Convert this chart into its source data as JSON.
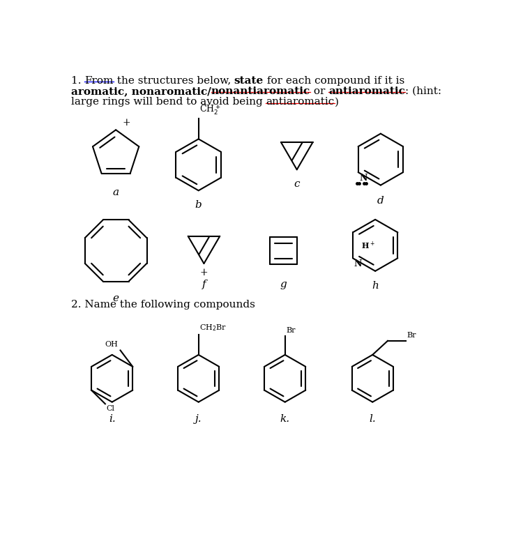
{
  "bg_color": "#ffffff",
  "text_color": "#000000",
  "line_width": 1.5,
  "font_size": 11,
  "line1_parts": [
    {
      "text": "1. ",
      "bold": false,
      "underline": false,
      "underline_color": "red"
    },
    {
      "text": "From",
      "bold": false,
      "underline": true,
      "underline_color": "blue"
    },
    {
      "text": " the structures below, ",
      "bold": false,
      "underline": false,
      "underline_color": "red"
    },
    {
      "text": "state",
      "bold": true,
      "underline": false,
      "underline_color": "red"
    },
    {
      "text": " for each compound if it is",
      "bold": false,
      "underline": false,
      "underline_color": "red"
    }
  ],
  "line2_parts": [
    {
      "text": "aromatic, nonaromatic/",
      "bold": true,
      "underline": false,
      "underline_color": "red"
    },
    {
      "text": "nonantiaromatic",
      "bold": true,
      "underline": true,
      "underline_color": "red"
    },
    {
      "text": " or ",
      "bold": false,
      "underline": false,
      "underline_color": "red"
    },
    {
      "text": "antiaromatic",
      "bold": true,
      "underline": true,
      "underline_color": "red"
    },
    {
      "text": ": (hint:",
      "bold": false,
      "underline": false,
      "underline_color": "red"
    }
  ],
  "line3_parts": [
    {
      "text": "large rings will bend to avoid being ",
      "bold": false,
      "underline": false,
      "underline_color": "red"
    },
    {
      "text": "antiaromatic",
      "bold": false,
      "underline": true,
      "underline_color": "red"
    },
    {
      "text": ")",
      "bold": false,
      "underline": false,
      "underline_color": "red"
    }
  ],
  "section2": "2. Name the following compounds"
}
